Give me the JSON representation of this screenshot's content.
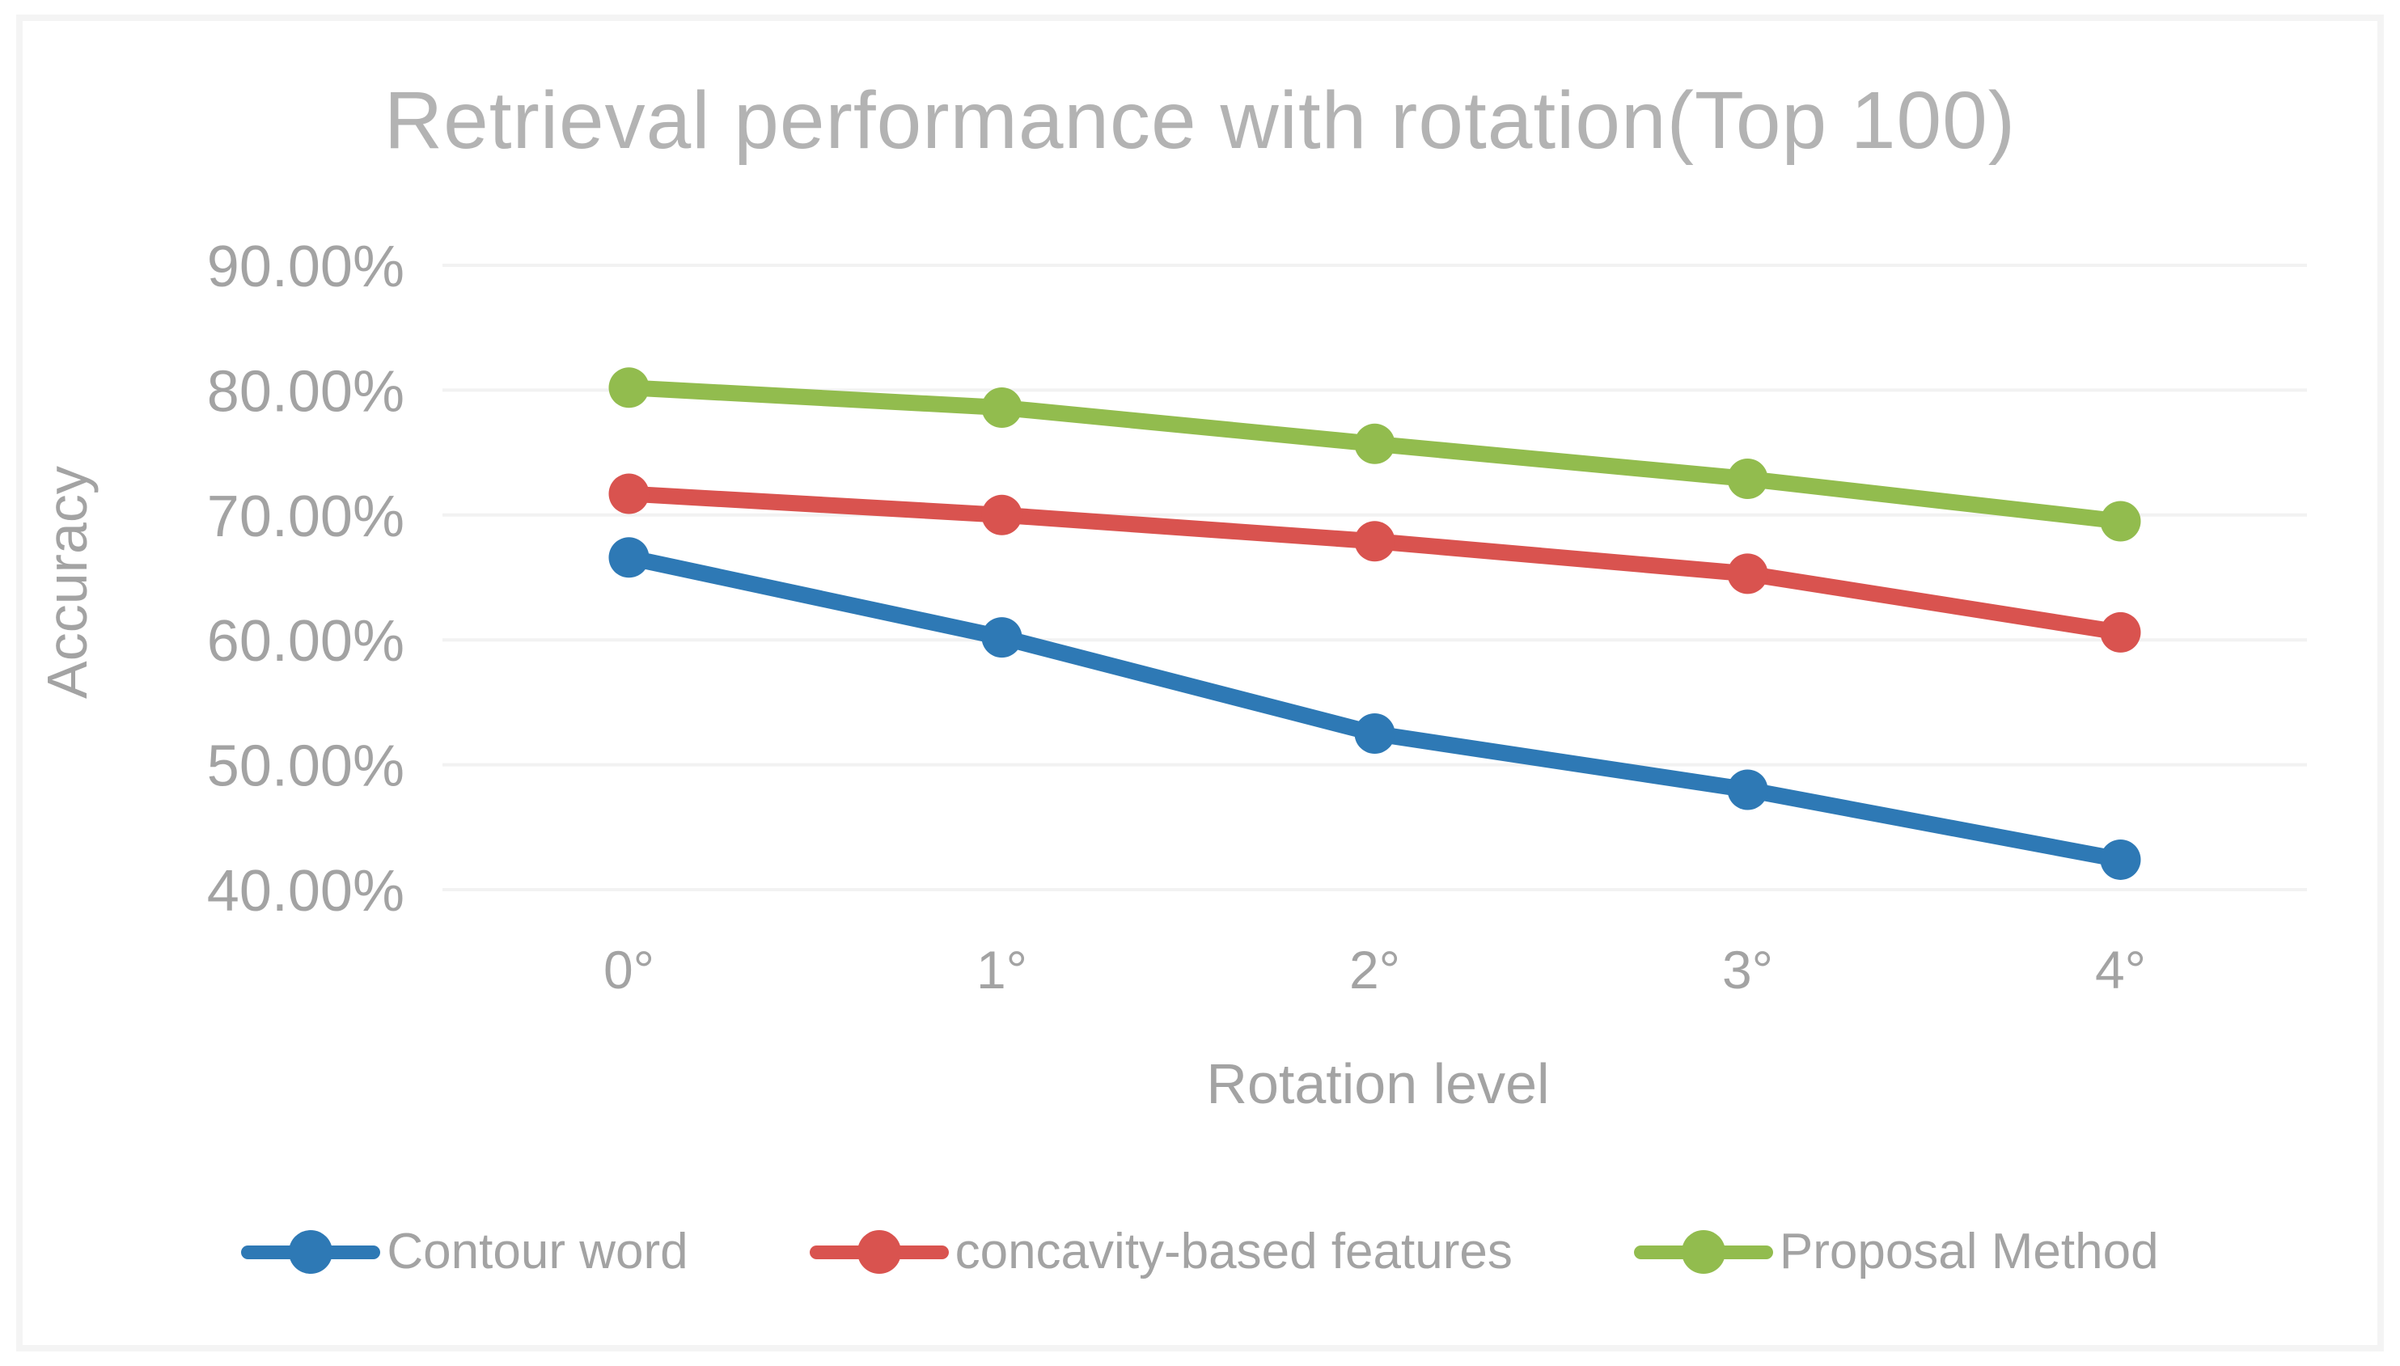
{
  "chart_data": {
    "type": "line",
    "title": "Retrieval performance with rotation(Top 100)",
    "xlabel": "Rotation level",
    "ylabel": "Accuracy",
    "categories": [
      "0°",
      "1°",
      "2°",
      "3°",
      "4°"
    ],
    "series": [
      {
        "name": "Contour word",
        "color": "#2e79b5",
        "values": [
          66.6,
          60.2,
          52.5,
          48.0,
          42.4
        ]
      },
      {
        "name": "concavity-based features",
        "color": "#d9534f",
        "values": [
          71.7,
          70.0,
          67.9,
          65.3,
          60.6
        ]
      },
      {
        "name": "Proposal Method",
        "color": "#92bc4e",
        "values": [
          80.2,
          78.6,
          75.7,
          72.9,
          69.5
        ]
      }
    ],
    "ylim": [
      40,
      90
    ],
    "y_ticks": [
      90,
      80,
      70,
      60,
      50,
      40
    ],
    "y_tick_labels": [
      "90.00%",
      "80.00%",
      "70.00%",
      "60.00%",
      "50.00%",
      "40.00%"
    ],
    "grid": "horizontal-only",
    "legend_position": "bottom"
  },
  "colors": {
    "title_text": "#b3b3b3",
    "axis_text": "#a3a3a3",
    "gridline": "#f2f2f2",
    "frame_border": "#f4f4f4",
    "background": "#ffffff"
  }
}
